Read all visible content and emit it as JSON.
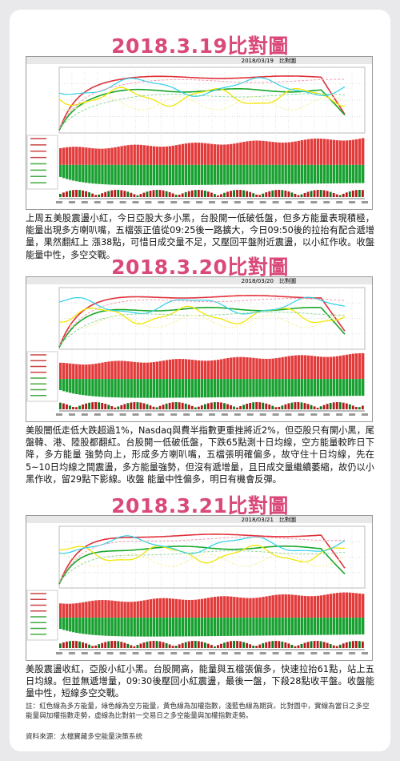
{
  "sections": [
    {
      "title": "2018.3.19比對圖",
      "chart_header": "2018/03/19　比對圖",
      "text": "上周五美股震盪小紅，今日亞股大多小黑，台股開一低破低盤，但多方能量表現積極，能量出現多方喇叭嘴，五檔張正值從09:25後一路擴大，今日09:50後的拉抬有配合遞增量，果然翻紅上 漲38點，可惜日成交量不足，又壓回平盤附近震盪，以小紅作收。收盤能量中性，多空交戰。"
    },
    {
      "title": "2018.3.20比對圖",
      "chart_header": "2018/03/20　比對圖",
      "text": "美股闇低走低大跌超過1%，Nasdaq與費半指數更重挫將近2%，但亞股只有開小黑，尾盤韓、港、陸股都翻紅。台股開一低破低盤，下跌65點測十日均線，空方能量較昨日下降，多方能量 強勢向上，形成多方喇叭嘴，五檔張明確偏多，故守住十日均線，先在5~10日均線之間震盪，多方能量強勢，但沒有遞增量，且日成交量繼續萎縮，故仍以小黑作收，留29點下影線。收盤 能量中性偏多，明日有機會反彈。"
    },
    {
      "title": "2018.3.21比對圖",
      "chart_header": "2018/03/21　比對圖",
      "text": "美股震盪收紅，亞股小紅小黑。台股開高，能量與五檔張偏多，快速拉抬61點，站上五日均線。但並無遞增量，09:30後壓回小紅震盪，最後一盤，下殺28點收平盤。收盤能量中性，短線多空交戰。"
    }
  ],
  "note": "註：紅色線為多方能量，綠色線為空方能量，黃色線為加權指數，淺藍色線為期貨。比對圖中，實線為當日之多空能量與加權指數走勢，虛線為比對前一交易日之多空能量與加權指數走勢。",
  "source": "資料來源：太檔寶藏多空能量決策系統"
}
